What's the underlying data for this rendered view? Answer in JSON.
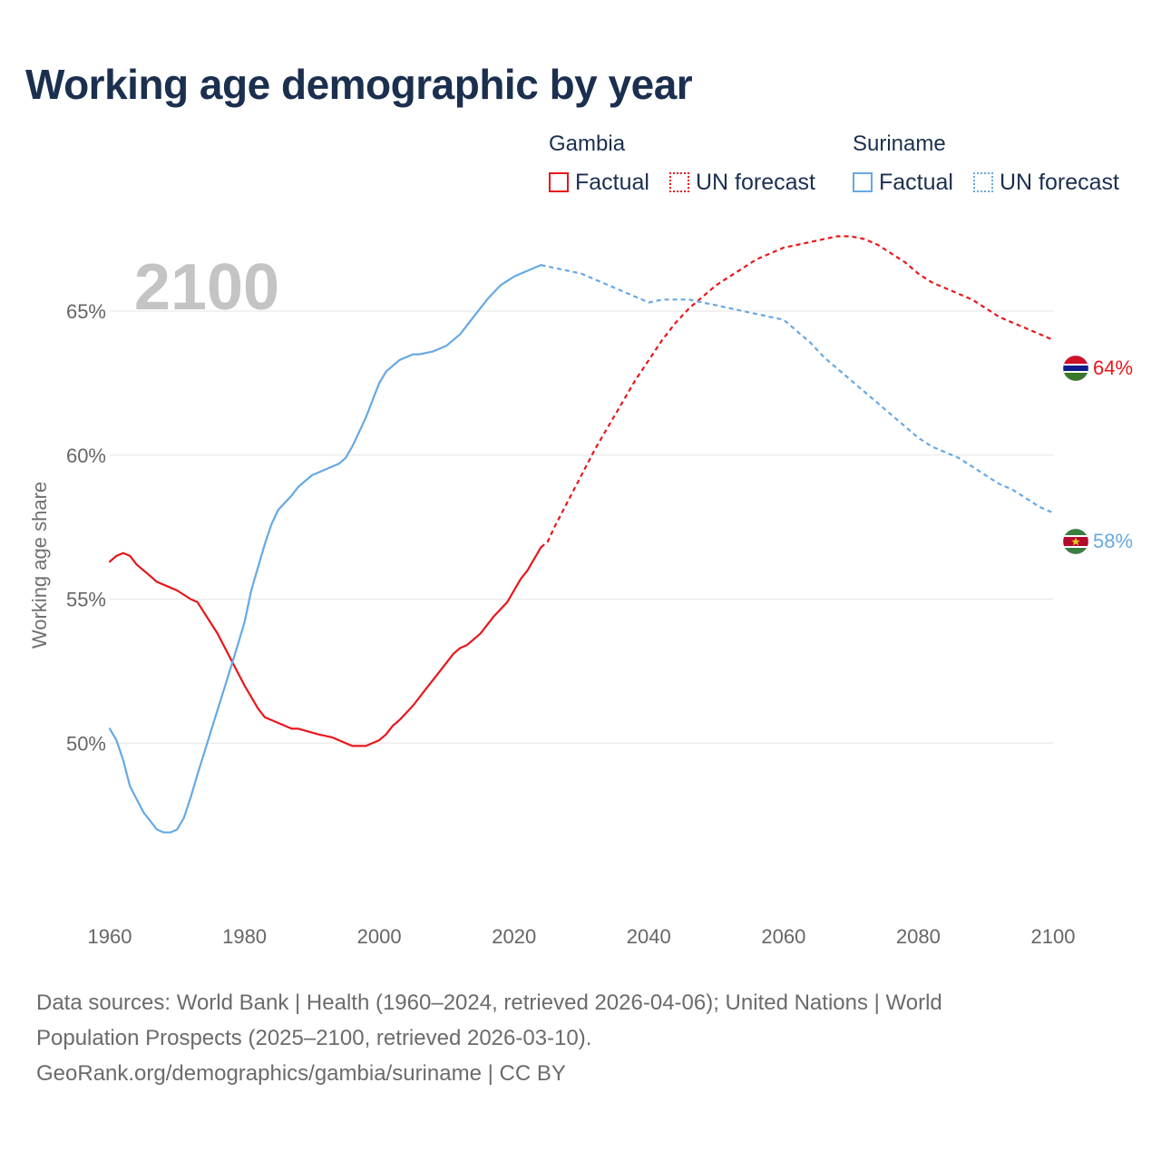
{
  "title": "Working age demographic by year",
  "legend": {
    "gambia": {
      "country": "Gambia",
      "factual": "Factual",
      "forecast": "UN forecast",
      "color": "#e8161b"
    },
    "suriname": {
      "country": "Suriname",
      "factual": "Factual",
      "forecast": "UN forecast",
      "color": "#66a9e3"
    }
  },
  "chart_data": {
    "type": "line",
    "year_label": "2100",
    "ylabel": "Working age share",
    "xlim": [
      1960,
      2100
    ],
    "ylim": [
      45,
      69
    ],
    "x_ticks": [
      1960,
      1980,
      2000,
      2020,
      2040,
      2060,
      2080,
      2100
    ],
    "x_tick_labels": [
      "1960",
      "1980",
      "2000",
      "2020",
      "2040",
      "2060",
      "2080",
      "2100"
    ],
    "y_ticks": [
      50,
      55,
      60,
      65
    ],
    "y_tick_labels": [
      "50%",
      "55%",
      "60%",
      "65%"
    ],
    "series": [
      {
        "name": "Gambia",
        "color": "#e8161b",
        "end_label": "64%",
        "factual": {
          "x": [
            1960,
            1961,
            1962,
            1963,
            1964,
            1966,
            1967,
            1969,
            1970,
            1972,
            1973,
            1976,
            1978,
            1980,
            1982,
            1983,
            1985,
            1987,
            1988,
            1991,
            1993,
            1995,
            1996,
            1998,
            2000,
            2001,
            2002,
            2003,
            2005,
            2007,
            2009,
            2010,
            2011,
            2012,
            2013,
            2015,
            2016,
            2017,
            2019,
            2020,
            2021,
            2022,
            2023,
            2024
          ],
          "y": [
            56.3,
            56.5,
            56.6,
            56.5,
            56.2,
            55.8,
            55.6,
            55.4,
            55.3,
            55.0,
            54.9,
            53.8,
            52.9,
            52.0,
            51.2,
            50.9,
            50.7,
            50.5,
            50.5,
            50.3,
            50.2,
            50.0,
            49.9,
            49.9,
            50.1,
            50.3,
            50.6,
            50.8,
            51.3,
            51.9,
            52.5,
            52.8,
            53.1,
            53.3,
            53.4,
            53.8,
            54.1,
            54.4,
            54.9,
            55.3,
            55.7,
            56.0,
            56.4,
            56.8
          ]
        },
        "forecast": {
          "x": [
            2024,
            2025,
            2026,
            2028,
            2030,
            2032,
            2034,
            2036,
            2038,
            2040,
            2042,
            2044,
            2046,
            2048,
            2050,
            2052,
            2054,
            2056,
            2058,
            2060,
            2062,
            2064,
            2066,
            2068,
            2070,
            2072,
            2074,
            2076,
            2078,
            2080,
            2082,
            2084,
            2086,
            2088,
            2090,
            2092,
            2094,
            2096,
            2098,
            2100
          ],
          "y": [
            56.8,
            57.0,
            57.5,
            58.4,
            59.3,
            60.2,
            61.0,
            61.8,
            62.6,
            63.3,
            64.0,
            64.6,
            65.1,
            65.5,
            65.9,
            66.2,
            66.5,
            66.8,
            67.0,
            67.2,
            67.3,
            67.4,
            67.5,
            67.6,
            67.6,
            67.5,
            67.3,
            67.0,
            66.7,
            66.3,
            66.0,
            65.8,
            65.6,
            65.4,
            65.1,
            64.8,
            64.6,
            64.4,
            64.2,
            64.0
          ]
        }
      },
      {
        "name": "Suriname",
        "color": "#66a9e3",
        "end_label": "58%",
        "factual": {
          "x": [
            1960,
            1961,
            1962,
            1963,
            1965,
            1967,
            1968,
            1969,
            1970,
            1971,
            1972,
            1973,
            1975,
            1977,
            1979,
            1980,
            1981,
            1982,
            1983,
            1984,
            1985,
            1987,
            1988,
            1989,
            1990,
            1992,
            1993,
            1994,
            1995,
            1996,
            1997,
            1998,
            1999,
            2000,
            2001,
            2002,
            2003,
            2005,
            2006,
            2008,
            2010,
            2012,
            2014,
            2016,
            2018,
            2020,
            2022,
            2023,
            2024
          ],
          "y": [
            50.5,
            50.1,
            49.4,
            48.5,
            47.6,
            47.0,
            46.9,
            46.9,
            47.0,
            47.4,
            48.1,
            48.9,
            50.4,
            51.9,
            53.4,
            54.2,
            55.3,
            56.1,
            56.9,
            57.6,
            58.1,
            58.6,
            58.9,
            59.1,
            59.3,
            59.5,
            59.6,
            59.7,
            59.9,
            60.3,
            60.8,
            61.3,
            61.9,
            62.5,
            62.9,
            63.1,
            63.3,
            63.5,
            63.5,
            63.6,
            63.8,
            64.2,
            64.8,
            65.4,
            65.9,
            66.2,
            66.4,
            66.5,
            66.6
          ]
        },
        "forecast": {
          "x": [
            2024,
            2026,
            2028,
            2030,
            2032,
            2034,
            2036,
            2038,
            2040,
            2042,
            2044,
            2046,
            2048,
            2050,
            2052,
            2054,
            2056,
            2058,
            2060,
            2062,
            2064,
            2066,
            2068,
            2070,
            2072,
            2074,
            2076,
            2078,
            2080,
            2082,
            2084,
            2086,
            2088,
            2090,
            2092,
            2094,
            2096,
            2098,
            2100
          ],
          "y": [
            66.6,
            66.5,
            66.4,
            66.3,
            66.1,
            65.9,
            65.7,
            65.5,
            65.3,
            65.4,
            65.4,
            65.4,
            65.3,
            65.2,
            65.1,
            65.0,
            64.9,
            64.8,
            64.7,
            64.3,
            63.9,
            63.4,
            63.0,
            62.6,
            62.2,
            61.8,
            61.4,
            61.0,
            60.6,
            60.3,
            60.1,
            59.9,
            59.6,
            59.3,
            59.0,
            58.8,
            58.5,
            58.2,
            58.0
          ]
        }
      }
    ]
  },
  "footer": {
    "line1": "Data sources: World Bank | Health (1960–2024, retrieved 2026-04-06); United Nations | World",
    "line2": "Population Prospects (2025–2100, retrieved 2026-03-10).",
    "line3": "GeoRank.org/demographics/gambia/suriname | CC BY"
  }
}
